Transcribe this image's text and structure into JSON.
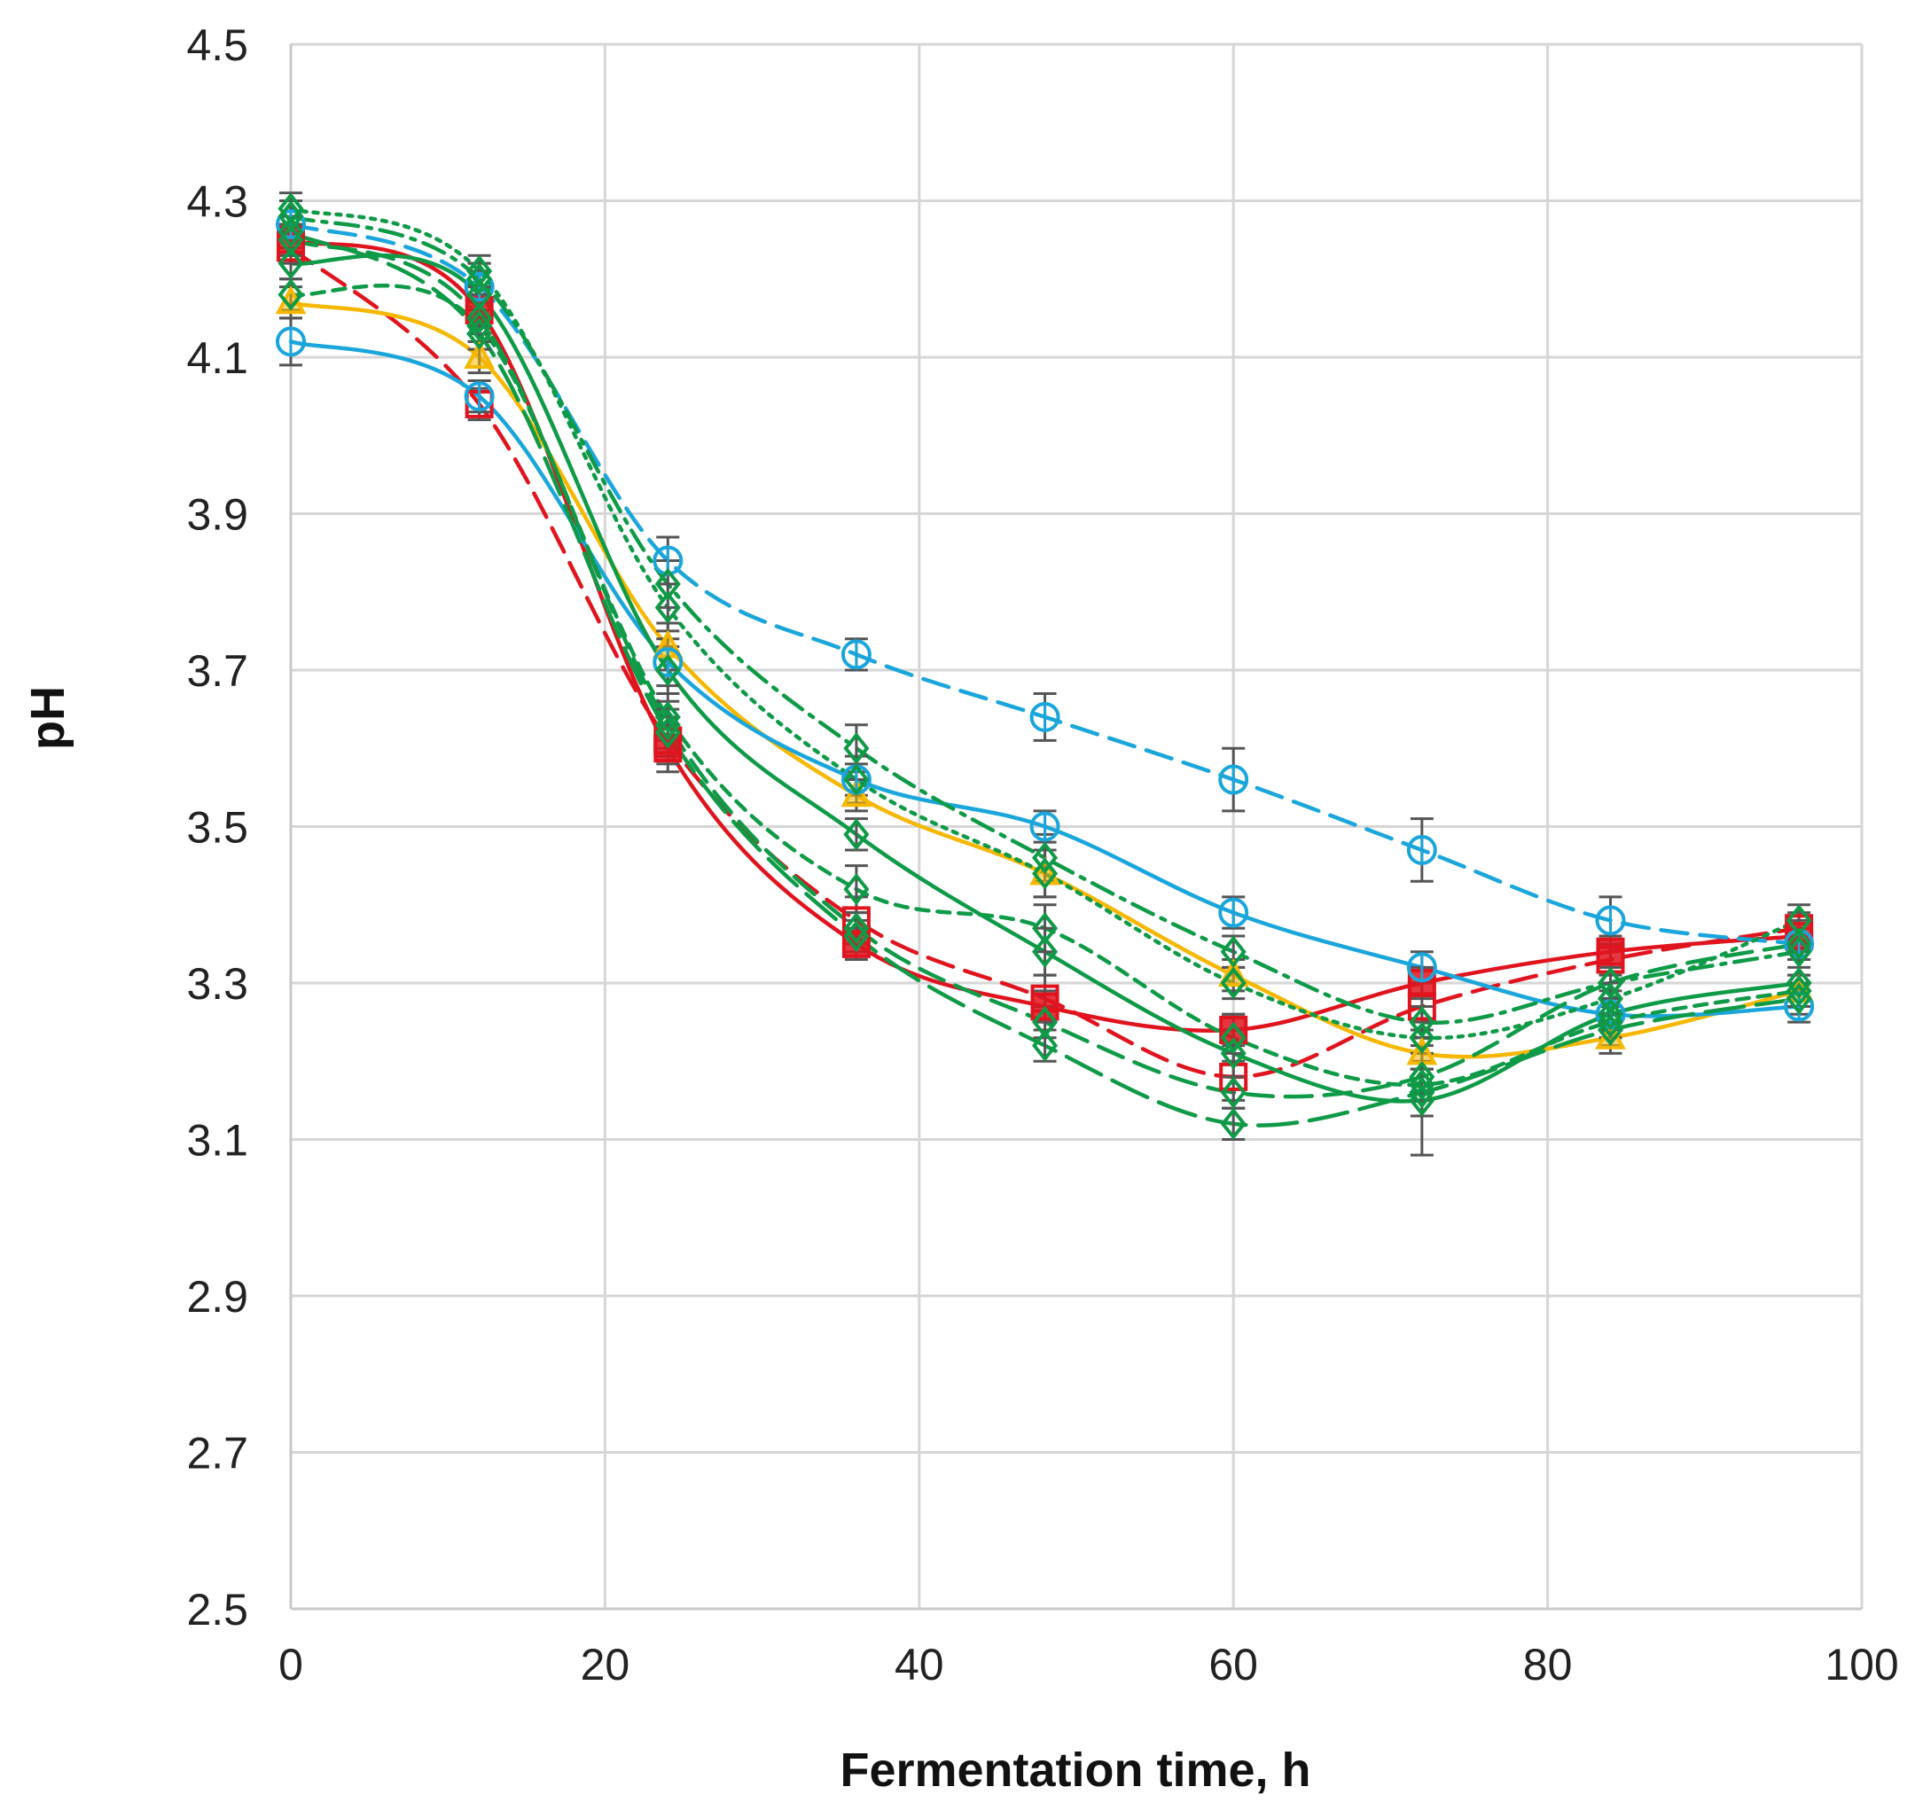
{
  "chart_data": {
    "type": "line",
    "title": "",
    "xlabel": "Fermentation time, h",
    "ylabel": "pH",
    "xlim": [
      0,
      100
    ],
    "ylim": [
      2.5,
      4.5
    ],
    "xticks": [
      0,
      20,
      40,
      60,
      80,
      100
    ],
    "yticks": [
      2.5,
      2.7,
      2.9,
      3.1,
      3.3,
      3.5,
      3.7,
      3.9,
      4.1,
      4.3,
      4.5
    ],
    "ytick_labels": [
      "2.5",
      "2.7",
      "2.9",
      "3.1",
      "3.3",
      "3.5",
      "3.7",
      "3.9",
      "4.1",
      "4.3",
      "4.5"
    ],
    "grid": true,
    "x": [
      0,
      12,
      24,
      36,
      48,
      60,
      72,
      84,
      96
    ],
    "series": [
      {
        "name": "red solid squares",
        "color": "#e0141e",
        "dash": "solid",
        "marker": "square-filled",
        "values": [
          4.25,
          4.16,
          3.6,
          3.35,
          3.27,
          3.24,
          3.3,
          3.34,
          3.36
        ],
        "errors": [
          0.02,
          0.02,
          0.03,
          0.02,
          0.02,
          0.02,
          0.02,
          0.02,
          0.02
        ]
      },
      {
        "name": "red dashed squares",
        "color": "#e0141e",
        "dash": "dashed",
        "marker": "square-open",
        "values": [
          4.24,
          4.04,
          3.61,
          3.38,
          3.28,
          3.18,
          3.27,
          3.33,
          3.37
        ],
        "errors": [
          0.02,
          0.02,
          0.03,
          0.03,
          0.03,
          0.03,
          0.03,
          0.02,
          0.02
        ]
      },
      {
        "name": "yellow solid triangles",
        "color": "#f5b700",
        "dash": "solid",
        "marker": "triangle",
        "values": [
          4.17,
          4.1,
          3.73,
          3.54,
          3.44,
          3.31,
          3.21,
          3.23,
          3.29
        ],
        "errors": [
          0.02,
          0.02,
          0.03,
          0.02,
          0.03,
          0.02,
          0.02,
          0.02,
          0.02
        ]
      },
      {
        "name": "blue solid circles",
        "color": "#1ba6db",
        "dash": "solid",
        "marker": "circle-open",
        "values": [
          4.12,
          4.05,
          3.71,
          3.56,
          3.5,
          3.39,
          3.32,
          3.26,
          3.27
        ],
        "errors": [
          0.03,
          0.02,
          0.03,
          0.02,
          0.02,
          0.02,
          0.02,
          0.02,
          0.02
        ]
      },
      {
        "name": "blue dashed circles",
        "color": "#1ba6db",
        "dash": "dashed",
        "marker": "circle-open",
        "values": [
          4.27,
          4.19,
          3.84,
          3.72,
          3.64,
          3.56,
          3.47,
          3.38,
          3.35
        ],
        "errors": [
          0.03,
          0.03,
          0.03,
          0.02,
          0.03,
          0.04,
          0.04,
          0.03,
          0.02
        ]
      },
      {
        "name": "green solid diamonds",
        "color": "#0f9a48",
        "dash": "solid",
        "marker": "diamond",
        "values": [
          4.22,
          4.18,
          3.7,
          3.49,
          3.34,
          3.21,
          3.15,
          3.26,
          3.3
        ],
        "errors": [
          0.02,
          0.03,
          0.03,
          0.02,
          0.03,
          0.03,
          0.07,
          0.03,
          0.03
        ]
      },
      {
        "name": "green dash-dot diamonds",
        "color": "#0f9a48",
        "dash": "dashdot",
        "marker": "diamond",
        "values": [
          4.28,
          4.2,
          3.81,
          3.6,
          3.46,
          3.34,
          3.25,
          3.3,
          3.34
        ],
        "errors": [
          0.02,
          0.02,
          0.03,
          0.03,
          0.03,
          0.02,
          0.02,
          0.02,
          0.02
        ]
      },
      {
        "name": "green dotted diamonds",
        "color": "#0f9a48",
        "dash": "dotted",
        "marker": "diamond",
        "values": [
          4.29,
          4.21,
          3.78,
          3.56,
          3.44,
          3.3,
          3.23,
          3.28,
          3.38
        ],
        "errors": [
          0.02,
          0.02,
          0.03,
          0.03,
          0.03,
          0.02,
          0.02,
          0.02,
          0.02
        ]
      },
      {
        "name": "green short-dash diamonds",
        "color": "#0f9a48",
        "dash": "shortdash",
        "marker": "diamond",
        "values": [
          4.18,
          4.14,
          3.64,
          3.42,
          3.37,
          3.23,
          3.17,
          3.25,
          3.29
        ],
        "errors": [
          0.02,
          0.02,
          0.03,
          0.03,
          0.03,
          0.03,
          0.02,
          0.02,
          0.02
        ]
      },
      {
        "name": "green long-dash diamonds",
        "color": "#0f9a48",
        "dash": "longdash",
        "marker": "diamond",
        "values": [
          4.26,
          4.13,
          3.62,
          3.36,
          3.22,
          3.12,
          3.16,
          3.24,
          3.28
        ],
        "errors": [
          0.02,
          0.02,
          0.03,
          0.02,
          0.02,
          0.02,
          0.03,
          0.02,
          0.02
        ]
      },
      {
        "name": "green dashed diamonds",
        "color": "#0f9a48",
        "dash": "dashed",
        "marker": "diamond",
        "values": [
          4.25,
          4.15,
          3.63,
          3.37,
          3.25,
          3.16,
          3.18,
          3.3,
          3.35
        ],
        "errors": [
          0.02,
          0.02,
          0.03,
          0.02,
          0.02,
          0.02,
          0.02,
          0.02,
          0.02
        ]
      }
    ]
  }
}
